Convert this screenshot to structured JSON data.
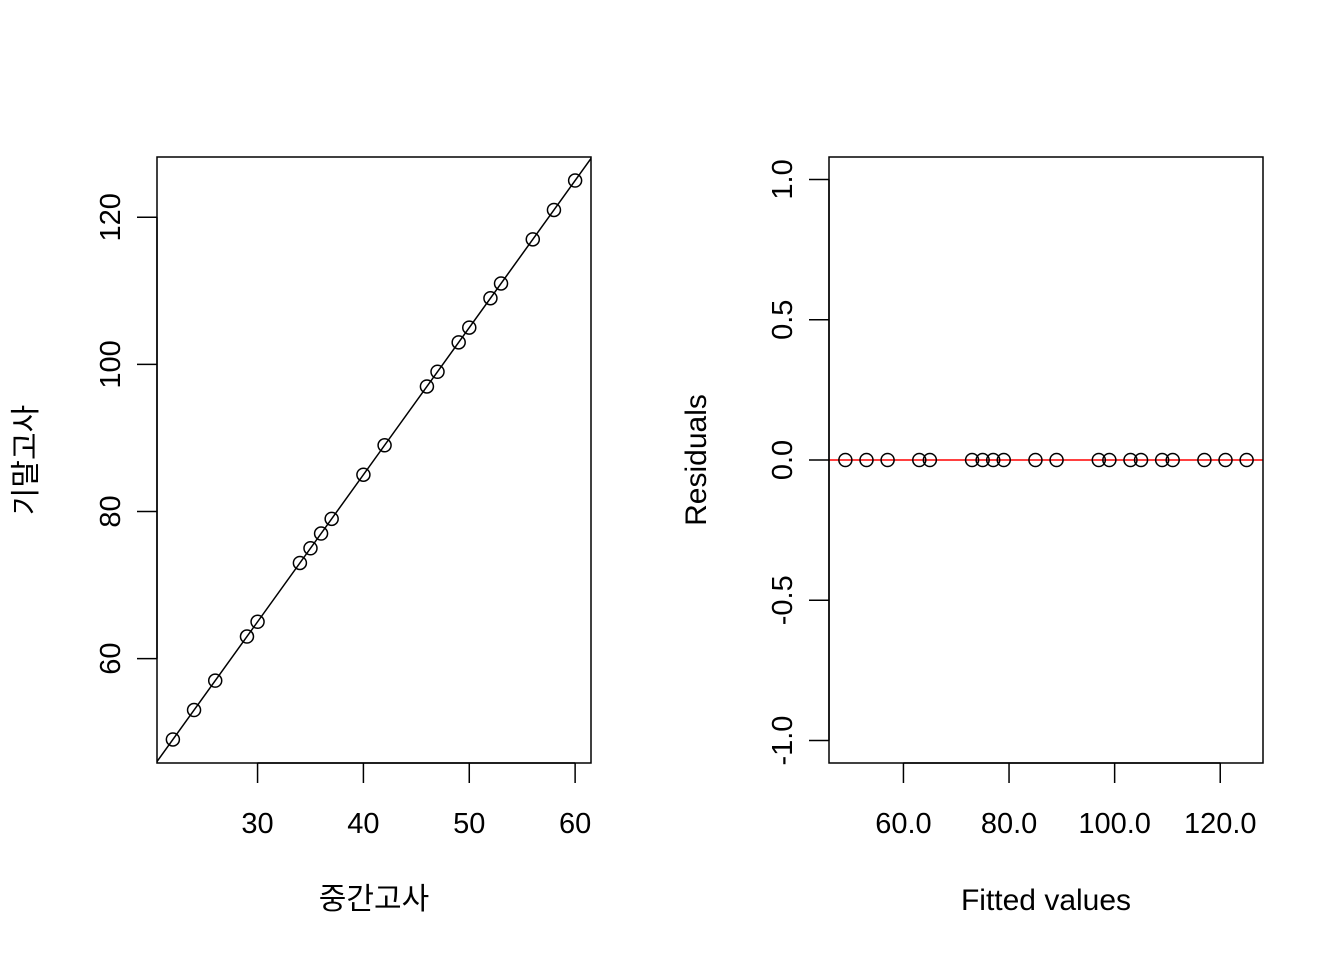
{
  "chart_data": [
    {
      "type": "scatter",
      "title": "",
      "xlabel": "중간고사",
      "ylabel": "기말고사",
      "xlim": [
        20.5,
        61.5
      ],
      "ylim": [
        45.8,
        128.2
      ],
      "xticks": [
        30,
        40,
        50,
        60
      ],
      "yticks": [
        60,
        80,
        100,
        120
      ],
      "grid": false,
      "fit_line": {
        "intercept": 5,
        "slope": 2
      },
      "points": [
        {
          "x": 22,
          "y": 49
        },
        {
          "x": 24,
          "y": 53
        },
        {
          "x": 26,
          "y": 57
        },
        {
          "x": 29,
          "y": 63
        },
        {
          "x": 30,
          "y": 65
        },
        {
          "x": 34,
          "y": 73
        },
        {
          "x": 35,
          "y": 75
        },
        {
          "x": 36,
          "y": 77
        },
        {
          "x": 37,
          "y": 79
        },
        {
          "x": 40,
          "y": 85
        },
        {
          "x": 42,
          "y": 89
        },
        {
          "x": 46,
          "y": 97
        },
        {
          "x": 47,
          "y": 99
        },
        {
          "x": 49,
          "y": 103
        },
        {
          "x": 50,
          "y": 105
        },
        {
          "x": 52,
          "y": 109
        },
        {
          "x": 53,
          "y": 111
        },
        {
          "x": 56,
          "y": 117
        },
        {
          "x": 58,
          "y": 121
        },
        {
          "x": 60,
          "y": 125
        }
      ]
    },
    {
      "type": "scatter",
      "title": "",
      "xlabel": "Fitted values",
      "ylabel": "Residuals",
      "xlim": [
        45.9,
        128.1
      ],
      "ylim": [
        -1.08,
        1.08
      ],
      "xticks": [
        60,
        80,
        100,
        120
      ],
      "yticks": [
        -1.0,
        -0.5,
        0.0,
        0.5,
        1.0
      ],
      "grid": false,
      "hline": {
        "y": 0,
        "color": "#ff0000"
      },
      "points": [
        {
          "x": 49,
          "y": 0
        },
        {
          "x": 53,
          "y": 0
        },
        {
          "x": 57,
          "y": 0
        },
        {
          "x": 63,
          "y": 0
        },
        {
          "x": 65,
          "y": 0
        },
        {
          "x": 73,
          "y": 0
        },
        {
          "x": 75,
          "y": 0
        },
        {
          "x": 77,
          "y": 0
        },
        {
          "x": 79,
          "y": 0
        },
        {
          "x": 85,
          "y": 0
        },
        {
          "x": 89,
          "y": 0
        },
        {
          "x": 97,
          "y": 0
        },
        {
          "x": 99,
          "y": 0
        },
        {
          "x": 103,
          "y": 0
        },
        {
          "x": 105,
          "y": 0
        },
        {
          "x": 109,
          "y": 0
        },
        {
          "x": 111,
          "y": 0
        },
        {
          "x": 117,
          "y": 0
        },
        {
          "x": 121,
          "y": 0
        },
        {
          "x": 125,
          "y": 0
        }
      ]
    }
  ]
}
